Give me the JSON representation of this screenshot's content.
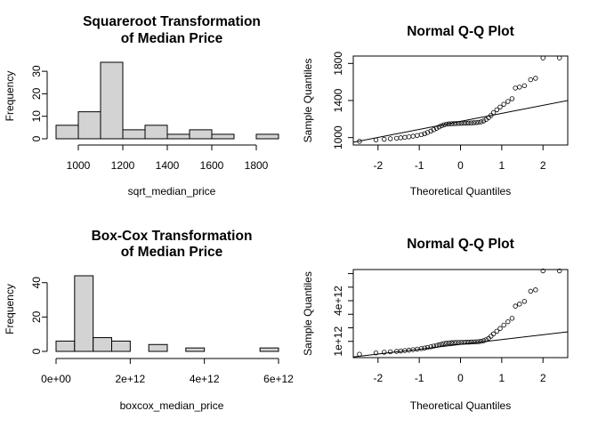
{
  "chart_data": [
    {
      "type": "bar",
      "title": [
        "Squareroot Transformation",
        "of Median Price"
      ],
      "xlabel": "sqrt_median_price",
      "ylabel": "Frequency",
      "bins": [
        {
          "from": 900,
          "to": 1000,
          "count": 6
        },
        {
          "from": 1000,
          "to": 1100,
          "count": 12
        },
        {
          "from": 1100,
          "to": 1200,
          "count": 34
        },
        {
          "from": 1200,
          "to": 1300,
          "count": 4
        },
        {
          "from": 1300,
          "to": 1400,
          "count": 6
        },
        {
          "from": 1400,
          "to": 1500,
          "count": 2
        },
        {
          "from": 1500,
          "to": 1600,
          "count": 4
        },
        {
          "from": 1600,
          "to": 1700,
          "count": 2
        },
        {
          "from": 1700,
          "to": 1800,
          "count": 0
        },
        {
          "from": 1800,
          "to": 1900,
          "count": 2
        }
      ],
      "xlim": [
        900,
        1900
      ],
      "ylim": [
        0,
        34
      ],
      "xticks": [
        {
          "v": 1000,
          "label": "1000"
        },
        {
          "v": 1200,
          "label": "1200"
        },
        {
          "v": 1400,
          "label": "1400"
        },
        {
          "v": 1600,
          "label": "1600"
        },
        {
          "v": 1800,
          "label": "1800"
        }
      ],
      "yticks": [
        {
          "v": 0,
          "label": "0"
        },
        {
          "v": 10,
          "label": "10"
        },
        {
          "v": 20,
          "label": "20"
        },
        {
          "v": 30,
          "label": "30"
        }
      ],
      "bar_color": "#d3d3d3"
    },
    {
      "type": "scatter",
      "title": [
        "Normal Q-Q Plot"
      ],
      "xlabel": "Theoretical Quantiles",
      "ylabel": "Sample Quantiles",
      "xlim": [
        -2.6,
        2.6
      ],
      "ylim": [
        920,
        1880
      ],
      "xticks": [
        {
          "v": -2,
          "label": "-2"
        },
        {
          "v": -1,
          "label": "-1"
        },
        {
          "v": 0,
          "label": "0"
        },
        {
          "v": 1,
          "label": "1"
        },
        {
          "v": 2,
          "label": "2"
        }
      ],
      "yticks": [
        {
          "v": 1000,
          "label": "1000"
        },
        {
          "v": 1400,
          "label": "1400"
        },
        {
          "v": 1800,
          "label": "1800"
        }
      ],
      "qq_line": [
        [
          -2.6,
          950
        ],
        [
          2.6,
          1400
        ]
      ],
      "points": [
        [
          -2.45,
          960
        ],
        [
          -2.05,
          975
        ],
        [
          -1.85,
          982
        ],
        [
          -1.7,
          988
        ],
        [
          -1.55,
          993
        ],
        [
          -1.45,
          998
        ],
        [
          -1.35,
          1003
        ],
        [
          -1.25,
          1008
        ],
        [
          -1.15,
          1015
        ],
        [
          -1.05,
          1023
        ],
        [
          -0.95,
          1032
        ],
        [
          -0.87,
          1042
        ],
        [
          -0.8,
          1055
        ],
        [
          -0.72,
          1070
        ],
        [
          -0.65,
          1085
        ],
        [
          -0.58,
          1100
        ],
        [
          -0.52,
          1115
        ],
        [
          -0.46,
          1128
        ],
        [
          -0.4,
          1138
        ],
        [
          -0.34,
          1145
        ],
        [
          -0.28,
          1148
        ],
        [
          -0.22,
          1150
        ],
        [
          -0.16,
          1151
        ],
        [
          -0.1,
          1152
        ],
        [
          -0.04,
          1153
        ],
        [
          0.02,
          1154
        ],
        [
          0.08,
          1155
        ],
        [
          0.14,
          1156
        ],
        [
          0.2,
          1157
        ],
        [
          0.26,
          1158
        ],
        [
          0.32,
          1160
        ],
        [
          0.38,
          1162
        ],
        [
          0.44,
          1165
        ],
        [
          0.5,
          1170
        ],
        [
          0.56,
          1180
        ],
        [
          0.62,
          1195
        ],
        [
          0.68,
          1215
        ],
        [
          0.74,
          1240
        ],
        [
          0.8,
          1270
        ],
        [
          0.88,
          1300
        ],
        [
          0.96,
          1330
        ],
        [
          1.05,
          1360
        ],
        [
          1.15,
          1390
        ],
        [
          1.25,
          1420
        ],
        [
          1.33,
          1535
        ],
        [
          1.43,
          1545
        ],
        [
          1.55,
          1560
        ],
        [
          1.7,
          1625
        ],
        [
          1.82,
          1640
        ],
        [
          2.0,
          1860
        ],
        [
          2.4,
          1860
        ]
      ]
    },
    {
      "type": "bar",
      "title": [
        "Box-Cox Transformation",
        "of Median Price"
      ],
      "xlabel": "boxcox_median_price",
      "ylabel": "Frequency",
      "bins": [
        {
          "from": 0,
          "to": 500000000000.0,
          "count": 6
        },
        {
          "from": 500000000000.0,
          "to": 1000000000000.0,
          "count": 44
        },
        {
          "from": 1000000000000.0,
          "to": 1500000000000.0,
          "count": 8
        },
        {
          "from": 1500000000000.0,
          "to": 2000000000000.0,
          "count": 6
        },
        {
          "from": 2000000000000.0,
          "to": 2500000000000.0,
          "count": 0
        },
        {
          "from": 2500000000000.0,
          "to": 3000000000000.0,
          "count": 4
        },
        {
          "from": 3000000000000.0,
          "to": 3500000000000.0,
          "count": 0
        },
        {
          "from": 3500000000000.0,
          "to": 4000000000000.0,
          "count": 2
        },
        {
          "from": 4000000000000.0,
          "to": 4500000000000.0,
          "count": 0
        },
        {
          "from": 4500000000000.0,
          "to": 5000000000000.0,
          "count": 0
        },
        {
          "from": 5000000000000.0,
          "to": 5500000000000.0,
          "count": 0
        },
        {
          "from": 5500000000000.0,
          "to": 6000000000000.0,
          "count": 2
        }
      ],
      "xlim": [
        0,
        6000000000000.0
      ],
      "ylim": [
        0,
        44
      ],
      "xticks": [
        {
          "v": 0,
          "label": "0e+00"
        },
        {
          "v": 2000000000000.0,
          "label": "2e+12"
        },
        {
          "v": 4000000000000.0,
          "label": "4e+12"
        },
        {
          "v": 6000000000000.0,
          "label": "6e+12"
        }
      ],
      "yticks": [
        {
          "v": 0,
          "label": "0"
        },
        {
          "v": 20,
          "label": "20"
        },
        {
          "v": 40,
          "label": "40"
        }
      ],
      "bar_color": "#d3d3d3"
    },
    {
      "type": "scatter",
      "title": [
        "Normal Q-Q Plot"
      ],
      "xlabel": "Theoretical Quantiles",
      "ylabel": "Sample Quantiles",
      "xlim": [
        -2.6,
        2.6
      ],
      "ylim": [
        -200000000000.0,
        6300000000000.0
      ],
      "xticks": [
        {
          "v": -2,
          "label": "-2"
        },
        {
          "v": -1,
          "label": "-1"
        },
        {
          "v": 0,
          "label": "0"
        },
        {
          "v": 1,
          "label": "1"
        },
        {
          "v": 2,
          "label": "2"
        }
      ],
      "yticks": [
        {
          "v": 1000000000000.0,
          "label": "1e+12"
        },
        {
          "v": 4000000000000.0,
          "label": "4e+12"
        }
      ],
      "yminor": [
        2000000000000.0,
        3000000000000.0,
        5000000000000.0,
        6000000000000.0
      ],
      "qq_line": [
        [
          -2.6,
          -150000000000.0
        ],
        [
          2.6,
          1700000000000.0
        ]
      ],
      "points": [
        [
          -2.45,
          50000000000.0
        ],
        [
          -2.05,
          150000000000.0
        ],
        [
          -1.85,
          200000000000.0
        ],
        [
          -1.7,
          230000000000.0
        ],
        [
          -1.55,
          260000000000.0
        ],
        [
          -1.45,
          290000000000.0
        ],
        [
          -1.35,
          320000000000.0
        ],
        [
          -1.25,
          350000000000.0
        ],
        [
          -1.15,
          390000000000.0
        ],
        [
          -1.05,
          430000000000.0
        ],
        [
          -0.95,
          470000000000.0
        ],
        [
          -0.87,
          510000000000.0
        ],
        [
          -0.8,
          550000000000.0
        ],
        [
          -0.72,
          600000000000.0
        ],
        [
          -0.65,
          650000000000.0
        ],
        [
          -0.58,
          700000000000.0
        ],
        [
          -0.52,
          750000000000.0
        ],
        [
          -0.46,
          800000000000.0
        ],
        [
          -0.4,
          840000000000.0
        ],
        [
          -0.34,
          870000000000.0
        ],
        [
          -0.28,
          890000000000.0
        ],
        [
          -0.22,
          900000000000.0
        ],
        [
          -0.16,
          910000000000.0
        ],
        [
          -0.1,
          920000000000.0
        ],
        [
          -0.04,
          920000000000.0
        ],
        [
          0.02,
          930000000000.0
        ],
        [
          0.08,
          930000000000.0
        ],
        [
          0.14,
          940000000000.0
        ],
        [
          0.2,
          940000000000.0
        ],
        [
          0.26,
          950000000000.0
        ],
        [
          0.32,
          960000000000.0
        ],
        [
          0.38,
          970000000000.0
        ],
        [
          0.44,
          980000000000.0
        ],
        [
          0.5,
          1000000000000.0
        ],
        [
          0.56,
          1050000000000.0
        ],
        [
          0.62,
          1120000000000.0
        ],
        [
          0.68,
          1220000000000.0
        ],
        [
          0.74,
          1380000000000.0
        ],
        [
          0.8,
          1550000000000.0
        ],
        [
          0.88,
          1750000000000.0
        ],
        [
          0.96,
          1950000000000.0
        ],
        [
          1.05,
          2200000000000.0
        ],
        [
          1.15,
          2450000000000.0
        ],
        [
          1.25,
          2700000000000.0
        ],
        [
          1.33,
          3600000000000.0
        ],
        [
          1.43,
          3750000000000.0
        ],
        [
          1.55,
          3950000000000.0
        ],
        [
          1.7,
          4700000000000.0
        ],
        [
          1.82,
          4800000000000.0
        ],
        [
          2.0,
          6200000000000.0
        ],
        [
          2.4,
          6200000000000.0
        ]
      ]
    }
  ]
}
